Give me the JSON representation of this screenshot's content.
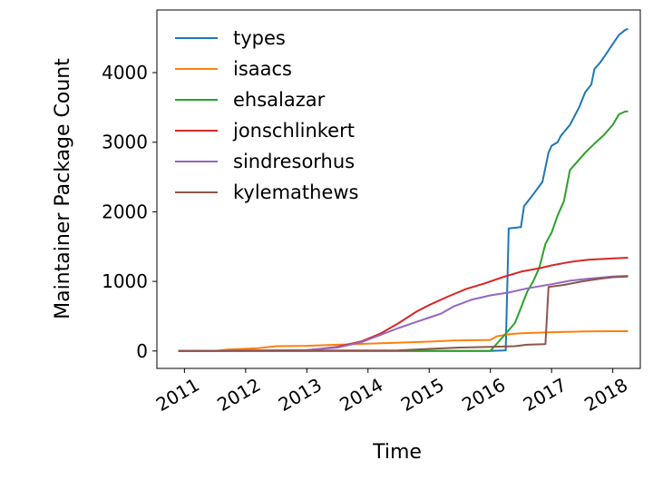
{
  "chart_data": {
    "type": "line",
    "title": "",
    "xlabel": "Time",
    "ylabel": "Maintainer Package Count",
    "xlim": [
      2010.55,
      2018.45
    ],
    "ylim": [
      -250,
      4900
    ],
    "x_ticks": [
      "2011",
      "2012",
      "2013",
      "2014",
      "2015",
      "2016",
      "2017",
      "2018"
    ],
    "y_ticks": [
      "0",
      "1000",
      "2000",
      "3000",
      "4000"
    ],
    "grid": false,
    "legend_position": "upper-left",
    "series": [
      {
        "name": "types",
        "color": "#1f77b4",
        "x": [
          2010.9,
          2016.0,
          2016.25,
          2016.3,
          2016.5,
          2016.55,
          2016.7,
          2016.85,
          2016.95,
          2017.0,
          2017.1,
          2017.15,
          2017.3,
          2017.45,
          2017.55,
          2017.65,
          2017.7,
          2017.8,
          2017.9,
          2018.0,
          2018.1,
          2018.2,
          2018.25
        ],
        "y": [
          0,
          0,
          10,
          1760,
          1780,
          2080,
          2250,
          2430,
          2850,
          2950,
          3000,
          3090,
          3250,
          3500,
          3720,
          3830,
          4050,
          4150,
          4280,
          4410,
          4540,
          4610,
          4630
        ]
      },
      {
        "name": "isaacs",
        "color": "#ff7f0e",
        "x": [
          2010.9,
          2011.5,
          2011.7,
          2012.2,
          2012.5,
          2013.0,
          2013.5,
          2014.0,
          2014.5,
          2015.0,
          2015.4,
          2016.0,
          2016.1,
          2016.3,
          2016.5,
          2017.0,
          2017.5,
          2018.0,
          2018.25
        ],
        "y": [
          0,
          0,
          20,
          40,
          70,
          75,
          90,
          105,
          120,
          135,
          150,
          160,
          210,
          240,
          255,
          270,
          280,
          285,
          285
        ]
      },
      {
        "name": "ehsalazar",
        "color": "#2ca02c",
        "x": [
          2010.9,
          2016.0,
          2016.2,
          2016.4,
          2016.5,
          2016.6,
          2016.7,
          2016.8,
          2016.9,
          2017.0,
          2017.1,
          2017.2,
          2017.3,
          2017.4,
          2017.55,
          2017.7,
          2017.85,
          2018.0,
          2018.1,
          2018.2,
          2018.25
        ],
        "y": [
          0,
          0,
          200,
          400,
          620,
          850,
          1000,
          1200,
          1540,
          1700,
          1950,
          2150,
          2600,
          2700,
          2850,
          2980,
          3100,
          3250,
          3400,
          3440,
          3445
        ]
      },
      {
        "name": "jonschlinkert",
        "color": "#d62728",
        "x": [
          2010.9,
          2013.0,
          2013.5,
          2013.9,
          2014.2,
          2014.5,
          2014.8,
          2015.0,
          2015.3,
          2015.6,
          2015.9,
          2016.2,
          2016.5,
          2016.8,
          2017.0,
          2017.3,
          2017.6,
          2018.0,
          2018.25
        ],
        "y": [
          0,
          10,
          60,
          140,
          250,
          400,
          570,
          660,
          780,
          890,
          970,
          1060,
          1140,
          1190,
          1230,
          1280,
          1310,
          1330,
          1340
        ]
      },
      {
        "name": "sindresorhus",
        "color": "#9467bd",
        "x": [
          2010.9,
          2013.0,
          2013.5,
          2013.9,
          2014.2,
          2014.5,
          2014.8,
          2015.0,
          2015.2,
          2015.4,
          2015.7,
          2016.0,
          2016.3,
          2016.6,
          2017.0,
          2017.3,
          2017.6,
          2018.0,
          2018.25
        ],
        "y": [
          0,
          15,
          50,
          130,
          230,
          330,
          420,
          480,
          540,
          640,
          740,
          800,
          840,
          900,
          960,
          1010,
          1040,
          1070,
          1080
        ]
      },
      {
        "name": "kylemathews",
        "color": "#8c564b",
        "x": [
          2010.9,
          2014.5,
          2015.0,
          2015.5,
          2016.0,
          2016.4,
          2016.6,
          2016.9,
          2016.95,
          2017.2,
          2017.5,
          2017.8,
          2018.0,
          2018.25
        ],
        "y": [
          0,
          10,
          30,
          50,
          60,
          70,
          90,
          100,
          920,
          950,
          1000,
          1040,
          1060,
          1070
        ]
      }
    ]
  }
}
